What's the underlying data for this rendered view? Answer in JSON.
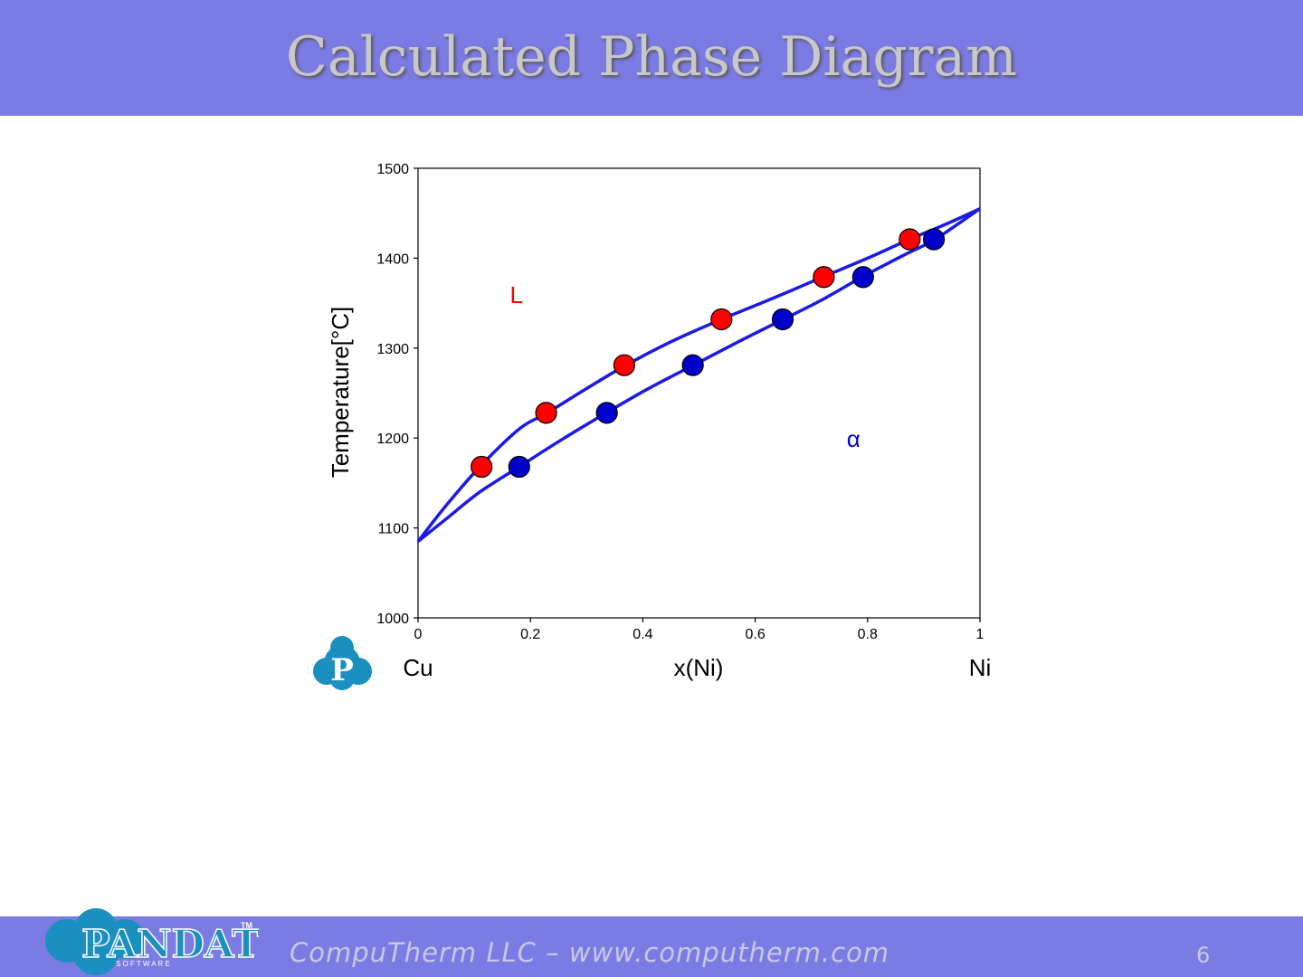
{
  "slide": {
    "title": "Calculated Phase Diagram",
    "footer": "CompuTherm LLC – www.computherm.com",
    "page_number": "6",
    "logo_text": "PANDAT",
    "logo_sub": "S O F T W A R E",
    "logo_tm": "TM",
    "chart_logo_letter": "P"
  },
  "colors": {
    "bar": "#7b7be4",
    "curve": "#1a1ae6",
    "liquid_point": "#ff0000",
    "solid_point": "#0000cc",
    "logo": "#1a8fc0"
  },
  "chart_data": {
    "type": "scatter",
    "ylabel": "Temperature[°C]",
    "xlabel": "x(Ni)",
    "x_left_label": "Cu",
    "x_right_label": "Ni",
    "xlim": [
      0,
      1
    ],
    "ylim": [
      1000,
      1500
    ],
    "x_ticks": [
      "0",
      "0.2",
      "0.4",
      "0.6",
      "0.8",
      "1"
    ],
    "y_ticks": [
      "1000",
      "1100",
      "1200",
      "1300",
      "1400",
      "1500"
    ],
    "region_labels": [
      {
        "text": "L",
        "x": 0.175,
        "y": 1360,
        "color": "#ff0000"
      },
      {
        "text": "α",
        "x": 0.775,
        "y": 1200,
        "color": "#0000cc"
      }
    ],
    "curves": [
      {
        "x": [
          0,
          0.05,
          0.11,
          0.18,
          0.23,
          0.3,
          0.37,
          0.45,
          0.54,
          0.63,
          0.72,
          0.8,
          0.875,
          0.94,
          1
        ],
        "y": [
          1085,
          1125,
          1168,
          1210,
          1228,
          1255,
          1281,
          1307,
          1332,
          1355,
          1379,
          1400,
          1421,
          1438,
          1455
        ]
      },
      {
        "x": [
          0,
          0.05,
          0.11,
          0.18,
          0.25,
          0.335,
          0.41,
          0.49,
          0.57,
          0.65,
          0.72,
          0.79,
          0.86,
          0.92,
          1
        ],
        "y": [
          1085,
          1110,
          1140,
          1168,
          1196,
          1228,
          1255,
          1281,
          1307,
          1332,
          1354,
          1379,
          1402,
          1421,
          1455
        ]
      }
    ],
    "series": [
      {
        "x": [
          0.113,
          0.228,
          0.367,
          0.54,
          0.722,
          0.875
        ],
        "y": [
          1168,
          1228,
          1281,
          1332,
          1379,
          1421
        ],
        "color": "#ff0000"
      },
      {
        "x": [
          0.18,
          0.336,
          0.489,
          0.649,
          0.792,
          0.918
        ],
        "y": [
          1168,
          1228,
          1281,
          1332,
          1379,
          1421
        ],
        "color": "#0000cc"
      }
    ]
  }
}
